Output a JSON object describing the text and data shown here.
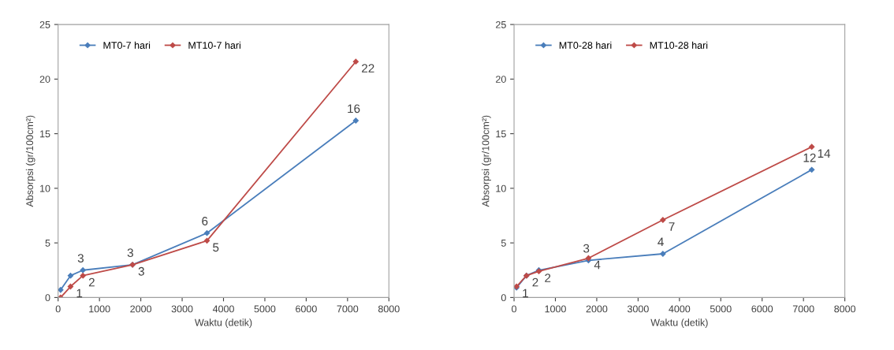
{
  "chart_data": [
    {
      "type": "line",
      "xlabel": "Waktu (detik)",
      "ylabel": "Absorpsi (gr/100cm²)",
      "x": [
        60,
        300,
        600,
        1800,
        3600,
        7200
      ],
      "xlim": [
        0,
        8000
      ],
      "xticks": [
        0,
        1000,
        2000,
        3000,
        4000,
        5000,
        6000,
        7000,
        8000
      ],
      "ylim": [
        0,
        25
      ],
      "yticks": [
        0,
        5,
        10,
        15,
        20,
        25
      ],
      "grid": false,
      "legend": "top left",
      "marker": "diamond",
      "line_style": "solid",
      "series": [
        {
          "name": "MT0-7 hari",
          "color": "#4a7ebb",
          "values": [
            0.7,
            2.0,
            2.5,
            3.0,
            5.9,
            16.2
          ],
          "value_labels": [
            null,
            null,
            "3",
            "3",
            "6",
            "16"
          ]
        },
        {
          "name": "MT10-7 hari",
          "color": "#be4b48",
          "values": [
            0.0,
            1.0,
            2.0,
            3.0,
            5.2,
            21.6
          ],
          "value_labels": [
            null,
            "1",
            "2",
            "3",
            "5",
            "22"
          ]
        }
      ]
    },
    {
      "type": "line",
      "xlabel": "Waktu (detik)",
      "ylabel": "Absorpsi (gr/100cm²)",
      "x": [
        60,
        300,
        600,
        1800,
        3600,
        7200
      ],
      "xlim": [
        0,
        8000
      ],
      "xticks": [
        0,
        1000,
        2000,
        3000,
        4000,
        5000,
        6000,
        7000,
        8000
      ],
      "ylim": [
        0,
        25
      ],
      "yticks": [
        0,
        5,
        10,
        15,
        20,
        25
      ],
      "grid": false,
      "legend": "top left",
      "marker": "diamond",
      "line_style": "solid",
      "series": [
        {
          "name": "MT0-28 hari",
          "color": "#4a7ebb",
          "values": [
            0.9,
            2.0,
            2.5,
            3.4,
            4.0,
            11.7
          ],
          "value_labels": [
            null,
            null,
            null,
            "3",
            "4",
            "12"
          ]
        },
        {
          "name": "MT10-28 hari",
          "color": "#be4b48",
          "values": [
            1.0,
            2.0,
            2.4,
            3.6,
            7.1,
            13.8
          ],
          "value_labels": [
            "1",
            "2",
            "2",
            "4",
            "7",
            "14"
          ]
        }
      ]
    }
  ]
}
